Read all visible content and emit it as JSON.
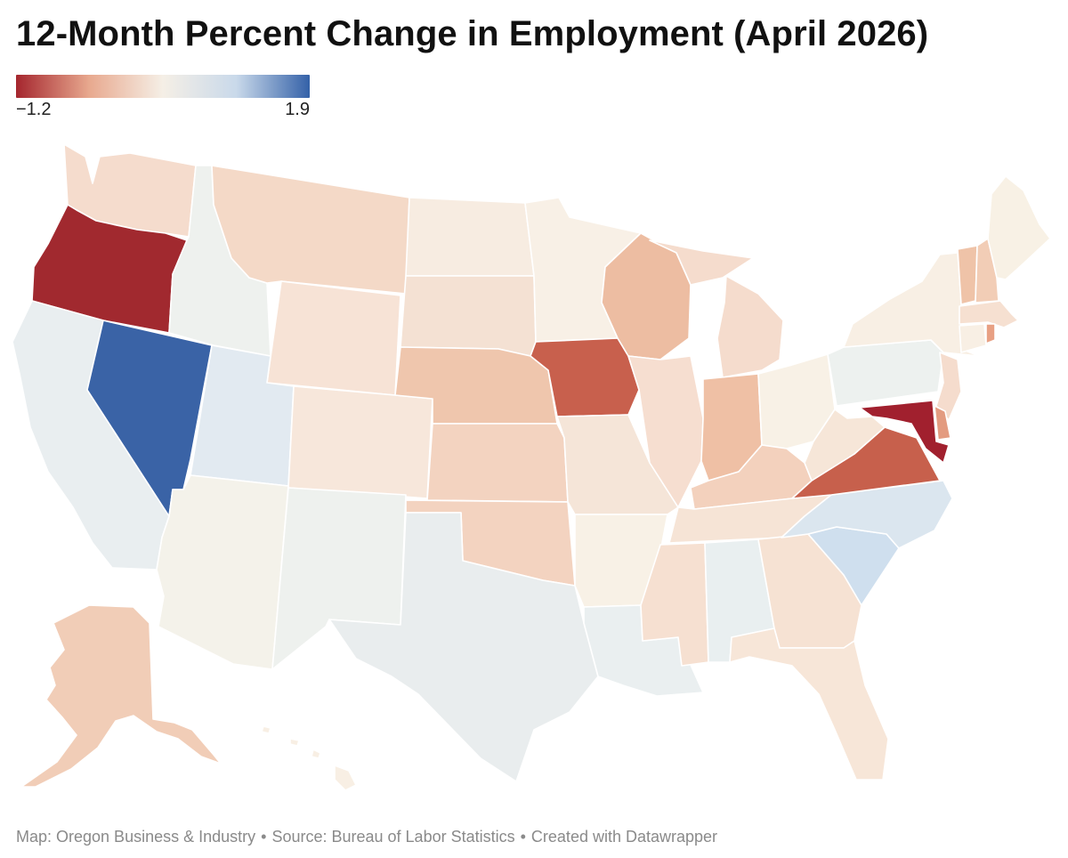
{
  "header": {
    "title": "12-Month Percent Change in Employment (April 2026)"
  },
  "legend": {
    "min_label": "−1.2",
    "max_label": "1.9",
    "min_value": -1.2,
    "max_value": 1.9,
    "stops": [
      {
        "color": "#a5262e"
      },
      {
        "color": "#e8a98f"
      },
      {
        "color": "#f5efe6"
      },
      {
        "color": "#c9d9ea"
      },
      {
        "color": "#3461a8"
      }
    ]
  },
  "map": {
    "states": [
      {
        "code": "WA",
        "color": "#f5dccd"
      },
      {
        "code": "OR",
        "color": "#a1292f"
      },
      {
        "code": "CA",
        "color": "#e9eef0"
      },
      {
        "code": "NV",
        "color": "#3a63a6"
      },
      {
        "code": "ID",
        "color": "#eef1ee"
      },
      {
        "code": "MT",
        "color": "#f4d9c7"
      },
      {
        "code": "WY",
        "color": "#f7e3d6"
      },
      {
        "code": "UT",
        "color": "#e2eaf1"
      },
      {
        "code": "AZ",
        "color": "#f4f2ea"
      },
      {
        "code": "CO",
        "color": "#f7e7db"
      },
      {
        "code": "NM",
        "color": "#eef1ee"
      },
      {
        "code": "ND",
        "color": "#f7ece1"
      },
      {
        "code": "SD",
        "color": "#f4e1d3"
      },
      {
        "code": "NE",
        "color": "#efc6ad"
      },
      {
        "code": "KS",
        "color": "#f3d3c0"
      },
      {
        "code": "OK",
        "color": "#f3d3c0"
      },
      {
        "code": "TX",
        "color": "#e9edee"
      },
      {
        "code": "MN",
        "color": "#f8f0e6"
      },
      {
        "code": "IA",
        "color": "#c8604d"
      },
      {
        "code": "MO",
        "color": "#f5e5d8"
      },
      {
        "code": "AR",
        "color": "#f8f1e6"
      },
      {
        "code": "LA",
        "color": "#eaeff0"
      },
      {
        "code": "WI",
        "color": "#edbda2"
      },
      {
        "code": "IL",
        "color": "#f6ded0"
      },
      {
        "code": "MI",
        "color": "#f5dccd"
      },
      {
        "code": "IN",
        "color": "#efc0a5"
      },
      {
        "code": "OH",
        "color": "#f8f1e6"
      },
      {
        "code": "KY",
        "color": "#f3d1bd"
      },
      {
        "code": "TN",
        "color": "#f6e4d6"
      },
      {
        "code": "MS",
        "color": "#f6e0d1"
      },
      {
        "code": "AL",
        "color": "#e9eff0"
      },
      {
        "code": "GA",
        "color": "#f6e2d3"
      },
      {
        "code": "FL",
        "color": "#f7e6d8"
      },
      {
        "code": "SC",
        "color": "#cfdfee"
      },
      {
        "code": "NC",
        "color": "#dbe6ef"
      },
      {
        "code": "VA",
        "color": "#c7604c"
      },
      {
        "code": "WV",
        "color": "#f6e6d8"
      },
      {
        "code": "PA",
        "color": "#edf1ef"
      },
      {
        "code": "NY",
        "color": "#f8efe4"
      },
      {
        "code": "VT",
        "color": "#efc3a8"
      },
      {
        "code": "NH",
        "color": "#f2cdb6"
      },
      {
        "code": "ME",
        "color": "#f8f1e5"
      },
      {
        "code": "MA",
        "color": "#f6e0d1"
      },
      {
        "code": "CT",
        "color": "#f8efe4"
      },
      {
        "code": "RI",
        "color": "#e8a083"
      },
      {
        "code": "NJ",
        "color": "#f5dccd"
      },
      {
        "code": "DE",
        "color": "#e39b80"
      },
      {
        "code": "MD",
        "color": "#a1202e"
      },
      {
        "code": "AK",
        "color": "#f1cdb7"
      },
      {
        "code": "HI",
        "color": "#f8efe4"
      }
    ]
  },
  "footer": {
    "map_credit": "Map: Oregon Business & Industry",
    "separator": "•",
    "source": "Source: Bureau of Labor Statistics",
    "tool_credit": "Created with Datawrapper"
  }
}
